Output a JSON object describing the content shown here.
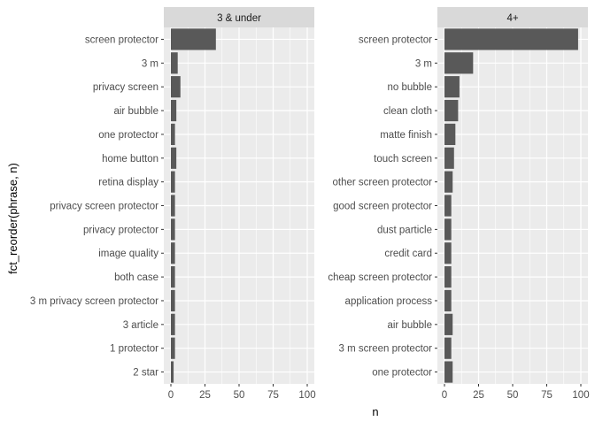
{
  "chart_data": {
    "type": "bar",
    "orientation": "horizontal",
    "y_axis_label": "fct_reorder(phrase, n)",
    "x_axis_label": "n",
    "xlim": [
      0,
      100
    ],
    "x_ticks": [
      0,
      25,
      50,
      75,
      100
    ],
    "grid": true,
    "bar_color": "#595959",
    "panel_background": "#EBEBEB",
    "strip_background": "#D9D9D9",
    "panels": [
      {
        "strip_label": "3 & under",
        "categories": [
          "screen protector",
          "3 m",
          "privacy screen",
          "air bubble",
          "one protector",
          "home button",
          "retina display",
          "privacy screen protector",
          "privacy protector",
          "image quality",
          "both case",
          "3 m privacy screen protector",
          "3 article",
          "1 protector",
          "2 star"
        ],
        "values": [
          33,
          5,
          7,
          4,
          3,
          4,
          3,
          3,
          3,
          3,
          3,
          3,
          3,
          3,
          2
        ]
      },
      {
        "strip_label": "4+",
        "categories": [
          "screen protector",
          "3 m",
          "no bubble",
          "clean cloth",
          "matte finish",
          "touch screen",
          "other screen protector",
          "good screen protector",
          "dust particle",
          "credit card",
          "cheap screen protector",
          "application process",
          "air bubble",
          "3 m screen protector",
          "one protector"
        ],
        "values": [
          98,
          21,
          11,
          10,
          8,
          7,
          6,
          5,
          5,
          5,
          5,
          5,
          6,
          5,
          6
        ]
      }
    ]
  }
}
